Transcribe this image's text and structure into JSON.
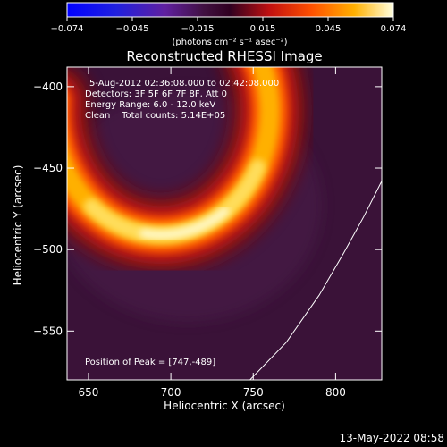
{
  "chart_data": {
    "type": "heatmap",
    "title": "Reconstructed RHESSI Image",
    "xlabel": "Heliocentric X (arcsec)",
    "ylabel": "Heliocentric Y (arcsec)",
    "xlim": [
      637,
      828
    ],
    "ylim": [
      -580,
      -388
    ],
    "x_ticks": [
      650,
      700,
      750,
      800
    ],
    "y_ticks": [
      -400,
      -450,
      -500,
      -550
    ],
    "colorbar": {
      "ticks": [
        "-0.074",
        "-0.045",
        "-0.015",
        "0.015",
        "0.045",
        "0.074"
      ],
      "unit_label": "(photons cm⁻² s⁻¹ asec⁻²)",
      "range": [
        -0.074,
        0.074
      ]
    },
    "annotations": {
      "time": "5-Aug-2012 02:36:08.000 to 02:42:08.000",
      "detectors": "Detectors: 3F 5F 6F 7F 8F, Att 0",
      "energy": "Energy Range: 6.0 - 12.0 keV",
      "clean": "Clean    Total counts: 5.14E+05",
      "peak": "Position of Peak = [747,-489]"
    },
    "limb_curve": [
      [
        748,
        -580
      ],
      [
        770,
        -557
      ],
      [
        790,
        -528
      ],
      [
        805,
        -502
      ],
      [
        817,
        -480
      ],
      [
        828,
        -458
      ]
    ],
    "source_arc": {
      "center": [
        694,
        -415
      ],
      "radius_x_arcsec": 66,
      "radius_y_arcsec": 76,
      "start_angle_deg": -25,
      "end_angle_deg": 185,
      "width_arcsec": 16,
      "peak": [
        747,
        -489
      ],
      "peak_value": 0.074
    }
  },
  "footer_date": "13-May-2022 08:58"
}
